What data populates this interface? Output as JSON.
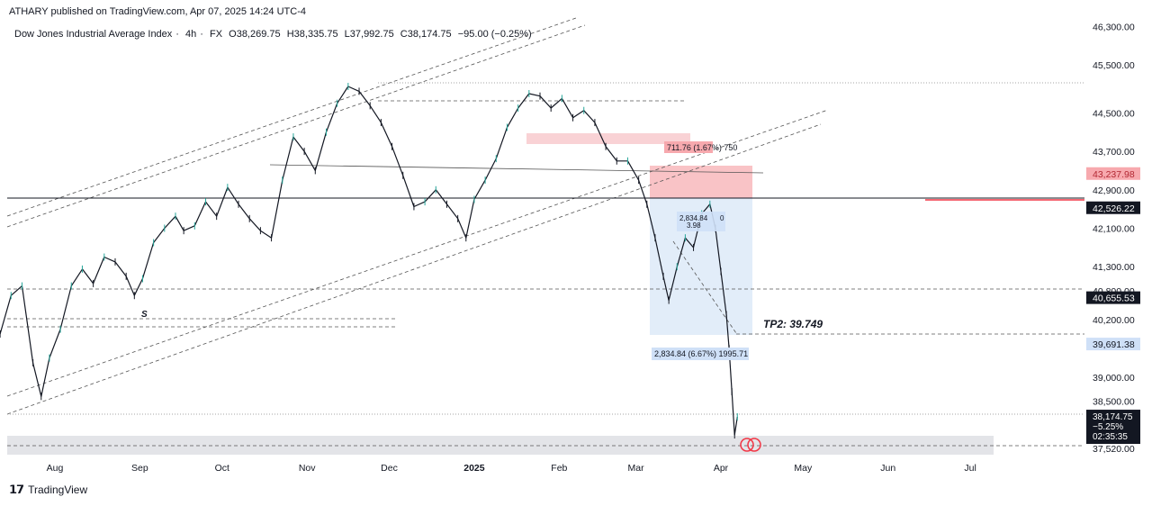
{
  "header": {
    "published": "ATHARY published on TradingView.com, Apr 07, 2025 14:24 UTC-4"
  },
  "symbol": {
    "name": "Dow Jones Industrial Average Index",
    "interval": "4h",
    "exchange": "FX",
    "open": "O38,269.75",
    "high": "H38,335.75",
    "low": "L37,992.75",
    "close": "C38,174.75",
    "change": "−95.00 (−0.25%)"
  },
  "footer": {
    "brand": "TradingView"
  },
  "colors": {
    "up": "#26a69a",
    "down": "#131722",
    "accent_red": "#f23645",
    "accent_blue": "#2962ff",
    "red_zone": "#f7a9ae",
    "blue_zone": "#cfe0f7"
  },
  "chart_data": {
    "type": "line",
    "title": "Dow Jones Industrial Average Index · 4h · FX",
    "y_ticks": [
      {
        "v": 46300,
        "label": "46,300.00"
      },
      {
        "v": 45500,
        "label": "45,500.00"
      },
      {
        "v": 44500,
        "label": "44,500.00"
      },
      {
        "v": 43700,
        "label": "43,700.00"
      },
      {
        "v": 42900,
        "label": "42,900.00"
      },
      {
        "v": 42100,
        "label": "42,100.00"
      },
      {
        "v": 41300,
        "label": "41,300.00"
      },
      {
        "v": 40800,
        "label": "40,800.00"
      },
      {
        "v": 40200,
        "label": "40,200.00"
      },
      {
        "v": 39000,
        "label": "39,000.00"
      },
      {
        "v": 38500,
        "label": "38,500.00"
      },
      {
        "v": 37520,
        "label": "37,520.00"
      }
    ],
    "ylim": [
      37520,
      46300
    ],
    "x_ticks": [
      "Aug",
      "Sep",
      "Oct",
      "Nov",
      "Dec",
      "2025",
      "Feb",
      "Mar",
      "Apr",
      "May",
      "Jun",
      "Jul"
    ],
    "x_tick_days": [
      31,
      62,
      92,
      123,
      153,
      184,
      215,
      243,
      274,
      304,
      335,
      365
    ],
    "x_domain_days": [
      0,
      372
    ],
    "x_origin": "2024-07-01",
    "series": [
      {
        "name": "Dow Jones Industrial Average Index",
        "points": [
          [
            0,
            40600
          ],
          [
            3,
            40900
          ],
          [
            7,
            40100
          ],
          [
            11,
            39900
          ],
          [
            15,
            40700
          ],
          [
            19,
            40900
          ],
          [
            23,
            39300
          ],
          [
            26,
            38600
          ],
          [
            29,
            39400
          ],
          [
            33,
            40000
          ],
          [
            37,
            40900
          ],
          [
            41,
            41250
          ],
          [
            45,
            40950
          ],
          [
            49,
            41500
          ],
          [
            53,
            41400
          ],
          [
            57,
            41100
          ],
          [
            60,
            40700
          ],
          [
            63,
            41050
          ],
          [
            67,
            41800
          ],
          [
            71,
            42100
          ],
          [
            75,
            42350
          ],
          [
            78,
            42050
          ],
          [
            82,
            42150
          ],
          [
            86,
            42650
          ],
          [
            90,
            42350
          ],
          [
            94,
            42950
          ],
          [
            98,
            42600
          ],
          [
            102,
            42300
          ],
          [
            106,
            42050
          ],
          [
            110,
            41900
          ],
          [
            114,
            43100
          ],
          [
            118,
            44000
          ],
          [
            122,
            43700
          ],
          [
            126,
            43300
          ],
          [
            130,
            44100
          ],
          [
            134,
            44700
          ],
          [
            138,
            45050
          ],
          [
            142,
            44950
          ],
          [
            146,
            44650
          ],
          [
            150,
            44300
          ],
          [
            154,
            43800
          ],
          [
            158,
            43200
          ],
          [
            162,
            42550
          ],
          [
            166,
            42650
          ],
          [
            170,
            42900
          ],
          [
            174,
            42600
          ],
          [
            178,
            42300
          ],
          [
            181,
            41900
          ],
          [
            184,
            42700
          ],
          [
            188,
            43100
          ],
          [
            192,
            43550
          ],
          [
            196,
            44200
          ],
          [
            200,
            44600
          ],
          [
            204,
            44900
          ],
          [
            208,
            44850
          ],
          [
            212,
            44600
          ],
          [
            216,
            44800
          ],
          [
            220,
            44400
          ],
          [
            224,
            44550
          ],
          [
            228,
            44300
          ],
          [
            232,
            43800
          ],
          [
            236,
            43500
          ],
          [
            240,
            43500
          ],
          [
            244,
            43100
          ],
          [
            247,
            42600
          ],
          [
            250,
            41900
          ],
          [
            253,
            41100
          ],
          [
            255,
            40600
          ],
          [
            258,
            41300
          ],
          [
            261,
            41900
          ],
          [
            264,
            41700
          ],
          [
            267,
            42400
          ],
          [
            270,
            42600
          ],
          [
            272,
            42100
          ],
          [
            274,
            41200
          ],
          [
            276,
            40300
          ],
          [
            277,
            39600
          ],
          [
            278,
            38700
          ],
          [
            279,
            37800
          ],
          [
            280,
            38175
          ]
        ]
      }
    ],
    "price_tags": [
      {
        "value": 43237.98,
        "label": "43,237.98",
        "style": "red"
      },
      {
        "value": 42526.22,
        "label": "42,526.22",
        "style": "dark"
      },
      {
        "value": 40655.53,
        "label": "40,655.53",
        "style": "dark"
      },
      {
        "value": 39691.38,
        "label": "39,691.38",
        "style": "blue"
      }
    ],
    "current": {
      "value": 38174.75,
      "label": "38,174.75",
      "change": "−5.25%",
      "countdown": "02:35:35"
    },
    "annotations": {
      "tp_label": "TP2: 39.749",
      "s_label": "S",
      "red_box_label": "711.76 (1.67%) 750",
      "blue_box_label": "2,834.84 (6.67%) 1995.71",
      "small_box_label": "2,834.84",
      "small_box_label_2": "3.98",
      "small_box_label_suffix": "0"
    },
    "grid": false,
    "legend": "none"
  }
}
